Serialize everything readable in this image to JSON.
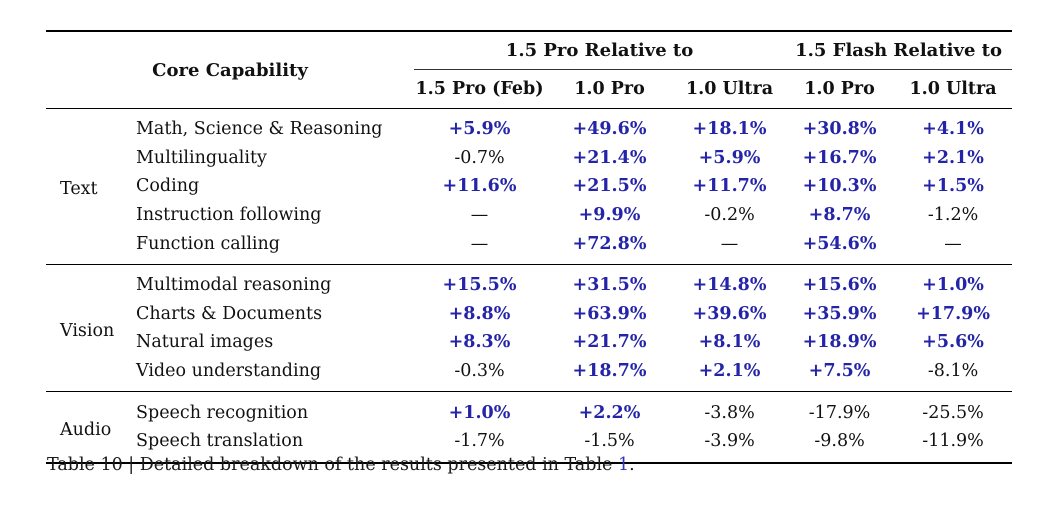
{
  "table": {
    "header": {
      "core_capability": "Core Capability",
      "groups": [
        {
          "label": "1.5 Pro Relative to",
          "colspan": 3
        },
        {
          "label": "1.5 Flash Relative to",
          "colspan": 2
        }
      ],
      "columns": [
        "1.5 Pro (Feb)",
        "1.0 Pro",
        "1.0 Ultra",
        "1.0 Pro",
        "1.0 Ultra"
      ]
    },
    "sections": [
      {
        "group": "Text",
        "rows": [
          {
            "capability": "Math, Science & Reasoning",
            "values": [
              "+5.9%",
              "+49.6%",
              "+18.1%",
              "+30.8%",
              "+4.1%"
            ]
          },
          {
            "capability": "Multilinguality",
            "values": [
              "-0.7%",
              "+21.4%",
              "+5.9%",
              "+16.7%",
              "+2.1%"
            ]
          },
          {
            "capability": "Coding",
            "values": [
              "+11.6%",
              "+21.5%",
              "+11.7%",
              "+10.3%",
              "+1.5%"
            ]
          },
          {
            "capability": "Instruction following",
            "values": [
              "—",
              "+9.9%",
              "-0.2%",
              "+8.7%",
              "-1.2%"
            ]
          },
          {
            "capability": "Function calling",
            "values": [
              "—",
              "+72.8%",
              "—",
              "+54.6%",
              "—"
            ]
          }
        ]
      },
      {
        "group": "Vision",
        "rows": [
          {
            "capability": "Multimodal reasoning",
            "values": [
              "+15.5%",
              "+31.5%",
              "+14.8%",
              "+15.6%",
              "+1.0%"
            ]
          },
          {
            "capability": "Charts & Documents",
            "values": [
              "+8.8%",
              "+63.9%",
              "+39.6%",
              "+35.9%",
              "+17.9%"
            ]
          },
          {
            "capability": "Natural images",
            "values": [
              "+8.3%",
              "+21.7%",
              "+8.1%",
              "+18.9%",
              "+5.6%"
            ]
          },
          {
            "capability": "Video understanding",
            "values": [
              "-0.3%",
              "+18.7%",
              "+2.1%",
              "+7.5%",
              "-8.1%"
            ]
          }
        ]
      },
      {
        "group": "Audio",
        "rows": [
          {
            "capability": "Speech recognition",
            "values": [
              "+1.0%",
              "+2.2%",
              "-3.8%",
              "-17.9%",
              "-25.5%"
            ]
          },
          {
            "capability": "Speech translation",
            "values": [
              "-1.7%",
              "-1.5%",
              "-3.9%",
              "-9.8%",
              "-11.9%"
            ]
          }
        ]
      }
    ]
  },
  "caption": {
    "prefix": "Table 10 | Detailed breakdown of the results presented in Table ",
    "link_text": "1",
    "suffix": "."
  },
  "colors": {
    "positive_value": "#2424a8",
    "body_text": "#111111",
    "link": "#3333cc",
    "rule": "#000000"
  }
}
